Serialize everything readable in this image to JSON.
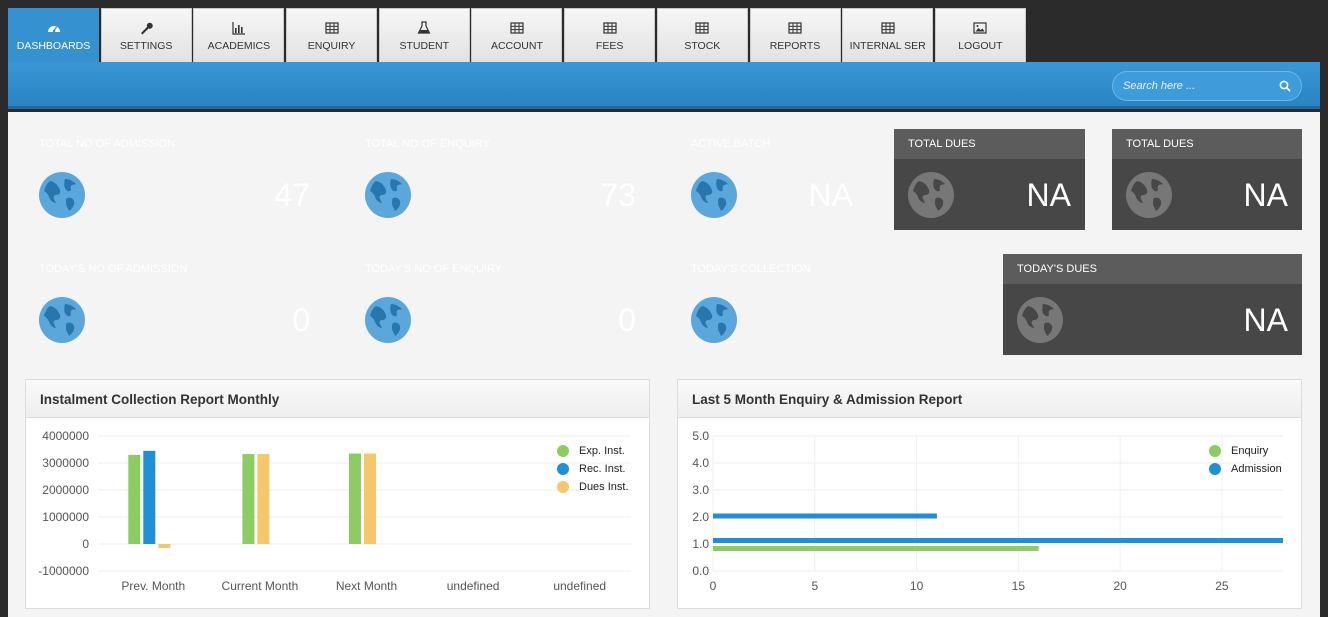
{
  "tabs": [
    {
      "label": "DASHBOARDS",
      "icon": "dashboard-icon",
      "active": true
    },
    {
      "label": "SETTINGS",
      "icon": "wrench-icon"
    },
    {
      "label": "ACADEMICS",
      "icon": "bar-chart-icon"
    },
    {
      "label": "ENQUIRY",
      "icon": "table-icon"
    },
    {
      "label": "STUDENT",
      "icon": "flask-icon"
    },
    {
      "label": "ACCOUNT",
      "icon": "table-icon"
    },
    {
      "label": "FEES",
      "icon": "table-icon"
    },
    {
      "label": "STOCK",
      "icon": "table-icon"
    },
    {
      "label": "REPORTS",
      "icon": "table-icon"
    },
    {
      "label": "INTERNAL SER",
      "icon": "table-icon"
    },
    {
      "label": "LOGOUT",
      "icon": "image-icon"
    }
  ],
  "search": {
    "placeholder": "Search here ..."
  },
  "cards_row1": [
    {
      "title": "TOTAL NO OF ADMISSION",
      "value": "47",
      "theme": "blue"
    },
    {
      "title": "TOTAL NO OF ENQUIRY",
      "value": "73",
      "theme": "blue"
    },
    {
      "title": "ACTIVE BATCH",
      "value": "NA",
      "theme": "blue"
    },
    {
      "title": "TOTAL DUES",
      "value": "NA",
      "theme": "dark"
    },
    {
      "title": "TOTAL DUES",
      "value": "NA",
      "theme": "dark"
    }
  ],
  "cards_row2": [
    {
      "title": "TODAY'S NO OF ADMISSION",
      "value": "0",
      "theme": "blue"
    },
    {
      "title": "TODAY'S NO OF ENQUIRY",
      "value": "0",
      "theme": "blue"
    },
    {
      "title": "TODAY'S COLLECTION",
      "value": "",
      "theme": "blue"
    },
    {
      "title": "TODAY'S DUES",
      "value": "NA",
      "theme": "dark"
    }
  ],
  "colors": {
    "exp": "#8dcc63",
    "rec": "#1f8fd6",
    "dues": "#f6c66b",
    "enquiry": "#8dcc63",
    "admission": "#1f8fd6"
  },
  "chart_data": [
    {
      "title": "Instalment Collection Report Monthly",
      "type": "bar",
      "categories": [
        "Prev. Month",
        "Current Month",
        "Next Month",
        "undefined",
        "undefined"
      ],
      "series": [
        {
          "name": "Exp. Inst.",
          "values": [
            3300000,
            3330000,
            3350000,
            null,
            null
          ]
        },
        {
          "name": "Rec. Inst.",
          "values": [
            3450000,
            null,
            null,
            null,
            null
          ]
        },
        {
          "name": "Dues Inst.",
          "values": [
            -150000,
            3330000,
            3350000,
            null,
            null
          ]
        }
      ],
      "yticks": [
        "4000000",
        "3000000",
        "2000000",
        "1000000",
        "0",
        "-1000000"
      ],
      "ylim": [
        -1000000,
        4000000
      ],
      "legend_position": "top-right"
    },
    {
      "title": "Last 5 Month Enquiry & Admission Report",
      "type": "bar",
      "orientation": "horizontal",
      "categories": [
        "1.0",
        "2.0"
      ],
      "series": [
        {
          "name": "Enquiry",
          "values": [
            16,
            null
          ]
        },
        {
          "name": "Admission",
          "values": [
            28,
            11
          ]
        }
      ],
      "xticks": [
        "0",
        "5",
        "10",
        "15",
        "20",
        "25"
      ],
      "yticks": [
        "5.0",
        "4.0",
        "3.0",
        "2.0",
        "1.0",
        "0.0"
      ],
      "xlim": [
        0,
        28
      ],
      "ylim": [
        0,
        5
      ],
      "legend_position": "top-right"
    }
  ]
}
